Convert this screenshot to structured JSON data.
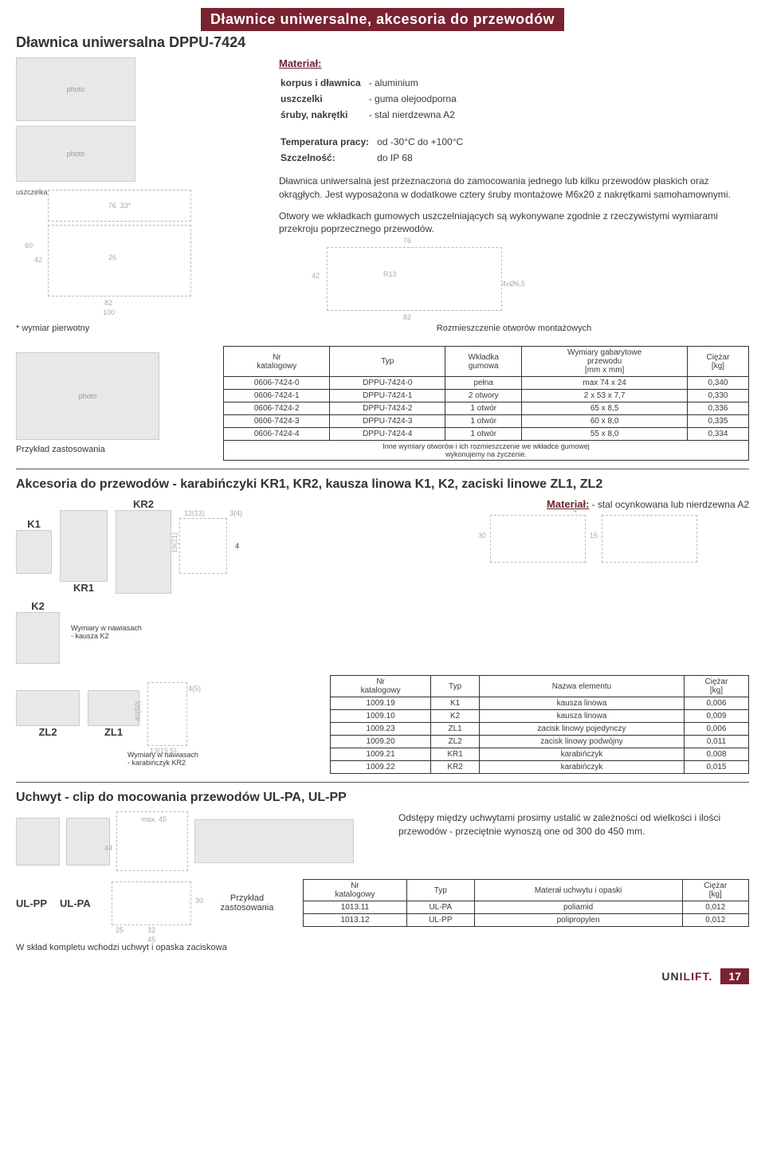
{
  "header": {
    "banner": "Dławnice uniwersalne, akcesoria do przewodów"
  },
  "sec1": {
    "title": "Dławnica uniwersalna  DPPU-7424",
    "material_label": "Materiał:",
    "material_rows": [
      [
        "korpus i dławnica",
        "- aluminium"
      ],
      [
        "uszczelki",
        "- guma olejoodporna"
      ],
      [
        "śruby, nakrętki",
        "- stal nierdzewna A2"
      ]
    ],
    "temp_label": "Temperatura pracy:",
    "temp_value": "od -30°C do +100°C",
    "szcz_label": "Szczelność:",
    "szcz_value": "do IP 68",
    "desc1": "Dławnica uniwersalna  jest przeznaczona do zamocowania jednego lub kilku przewodów płaskich oraz okrągłych. Jest wyposażona w dodatkowe cztery śruby montażowe M6x20 z nakrętkami samohamownymi.",
    "desc2": "Otwory we wkładkach gumowych uszczelniających są wykonywane zgodnie z rzeczywistymi wymiarami przekroju poprzecznego przewodów.",
    "primary_dim_note": "* wymiar pierwotny",
    "rozmiesz": "Rozmieszczenie otworów montażowych",
    "przyklad": "Przykład zastosowania",
    "diagram_dims": {
      "d76": "76",
      "d82": "82",
      "d100": "100",
      "d60": "60",
      "d42": "42",
      "d26": "26",
      "d33": "33*",
      "r13": "R13",
      "ang": "4xØ6,5"
    },
    "uszczelka": "uszczelka",
    "table": {
      "headers": [
        "Nr\nkatalogowy",
        "Typ",
        "Wkładka\ngumowa",
        "Wymiary gabarytowe\nprzewodu\n[mm x mm]",
        "Ciężar\n[kg]"
      ],
      "rows": [
        [
          "0606-7424-0",
          "DPPU-7424-0",
          "pełna",
          "max 74 x 24",
          "0,340"
        ],
        [
          "0606-7424-1",
          "DPPU-7424-1",
          "2 otwory",
          "2 x 53 x 7,7",
          "0,330"
        ],
        [
          "0606-7424-2",
          "DPPU-7424-2",
          "1 otwór",
          "65 x 8,5",
          "0,336"
        ],
        [
          "0606-7424-3",
          "DPPU-7424-3",
          "1 otwór",
          "60 x 8,0",
          "0,335"
        ],
        [
          "0606-7424-4",
          "DPPU-7424-4",
          "1 otwór",
          "55 x 8,0",
          "0,334"
        ]
      ],
      "note": "Inne wymiary otworów i ich rozmieszczenie we wkładce gumowej\nwykonujemy na życzenie."
    }
  },
  "sec2": {
    "title": "Akcesoria do przewodów - karabińczyki KR1, KR2, kausza linowa K1, K2, zaciski linowe ZL1, ZL2",
    "material_label": "Materiał:",
    "material_value": "- stal ocynkowana lub nierdzewna A2",
    "labels": {
      "k1": "K1",
      "k2": "K2",
      "kr1": "KR1",
      "kr2": "KR2",
      "zl1": "ZL1",
      "zl2": "ZL2"
    },
    "dim_notes": {
      "d1213": "12(13)",
      "d34": "3(4)",
      "d4": "4",
      "d1921": "19(21)",
      "d30": "30",
      "d15": "15",
      "d4050": "40(50)",
      "d45": "4(5)",
      "d13155": "13(15,5)"
    },
    "wym_k2": "Wymiary w nawiasach\n- kausza K2",
    "wym_kr2": "Wymiary w nawiasach\n- karabińczyk KR2",
    "table": {
      "headers": [
        "Nr\nkatalogowy",
        "Typ",
        "Nazwa elementu",
        "Ciężar\n[kg]"
      ],
      "rows": [
        [
          "1009.19",
          "K1",
          "kausza linowa",
          "0,006"
        ],
        [
          "1009.10",
          "K2",
          "kausza linowa",
          "0,009"
        ],
        [
          "1009.23",
          "ZL1",
          "zacisk linowy pojedynczy",
          "0,006"
        ],
        [
          "1009.20",
          "ZL2",
          "zacisk linowy podwójny",
          "0,011"
        ],
        [
          "1009.21",
          "KR1",
          "karabińczyk",
          "0,008"
        ],
        [
          "1009.22",
          "KR2",
          "karabińczyk",
          "0,015"
        ]
      ]
    }
  },
  "sec3": {
    "title": "Uchwyt - clip do mocowania przewodów  UL-PA, UL-PP",
    "desc": "Odstępy między uchwytami prosimy ustalić w zależności od wielkości i ilości przewodów - przeciętnie wynoszą one od 300 do 450 mm.",
    "labels": {
      "ulpp": "UL-PP",
      "ulpa": "UL-PA"
    },
    "dims": {
      "d25": "25",
      "d32": "32",
      "d45": "45",
      "d44": "44",
      "d30": "30",
      "max45": "max. 45"
    },
    "przyklad": "Przykład\nzastosowania",
    "sklad": "W skład kompletu wchodzi uchwyt i opaska zaciskowa",
    "table": {
      "headers": [
        "Nr\nkatalogowy",
        "Typ",
        "Materał uchwytu i opaski",
        "Ciężar\n[kg]"
      ],
      "rows": [
        [
          "1013.11",
          "UL-PA",
          "poliamid",
          "0,012"
        ],
        [
          "1013.12",
          "UL-PP",
          "polipropylen",
          "0,012"
        ]
      ]
    }
  },
  "footer": {
    "logo_pre": "UNI",
    "logo_post": "LIFT",
    "page": "17"
  }
}
